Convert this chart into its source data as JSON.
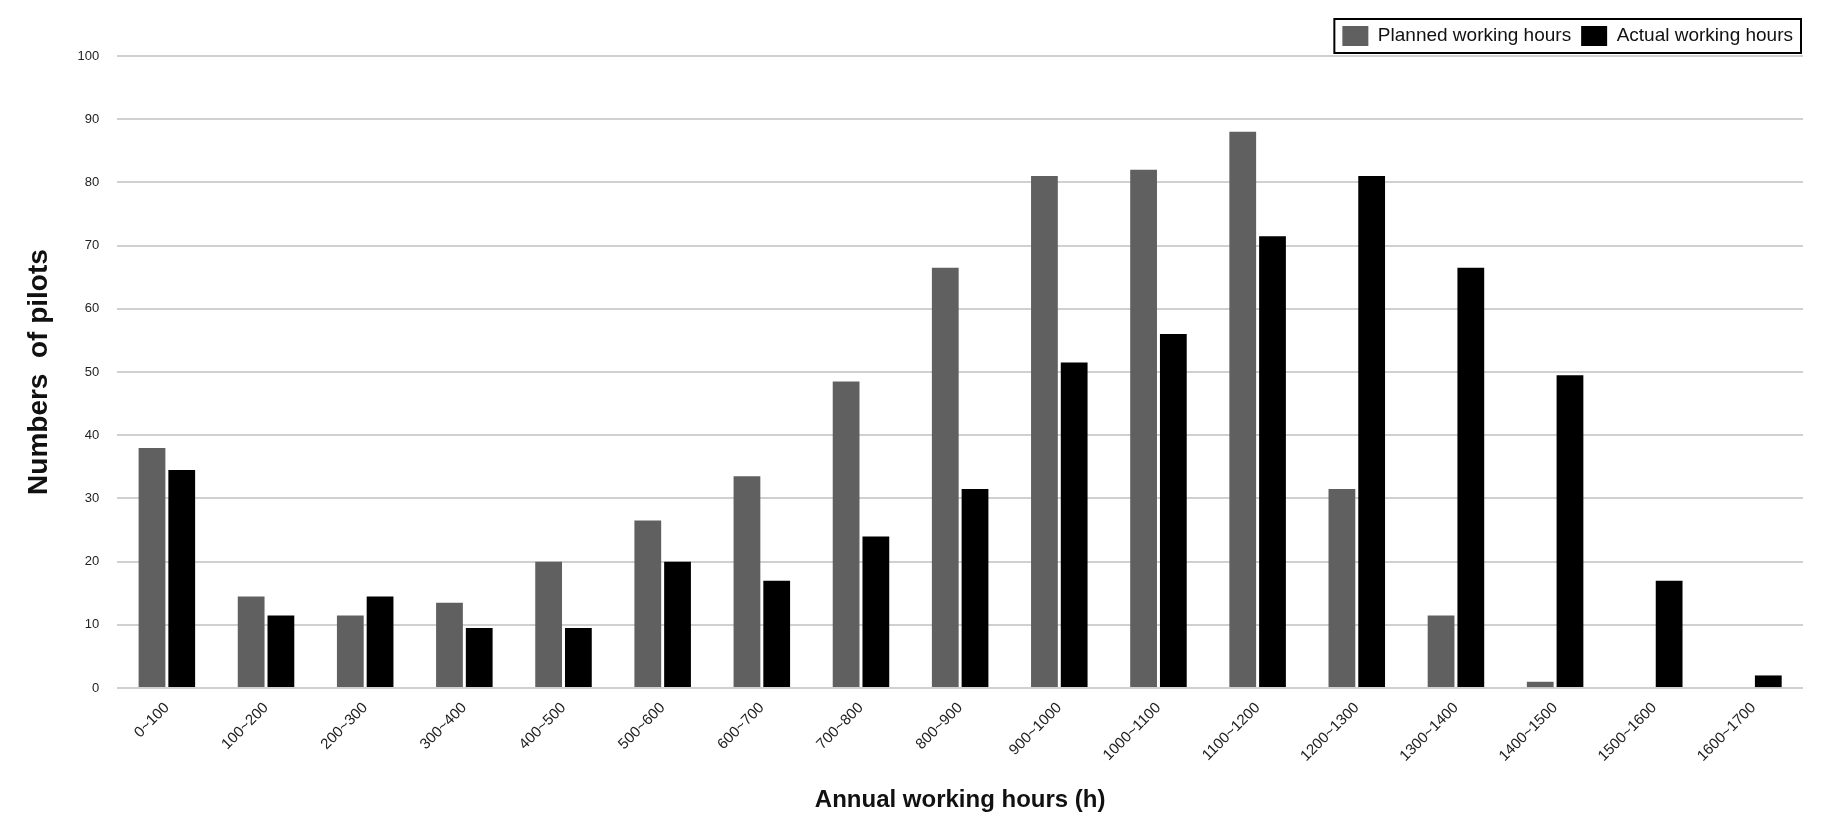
{
  "chart_data": {
    "type": "bar",
    "xlabel": "Annual working hours (h)",
    "ylabel": "Numbers  of pilots",
    "categories": [
      "0~100",
      "100~200",
      "200~300",
      "300~400",
      "400~500",
      "500~600",
      "600~700",
      "700~800",
      "800~900",
      "900~1000",
      "1000~1100",
      "1100~1200",
      "1200~1300",
      "1300~1400",
      "1400~1500",
      "1500~1600",
      "1600~1700"
    ],
    "series": [
      {
        "name": "Planned working hours",
        "color": "#606060",
        "values": [
          38,
          14.5,
          11.5,
          13.5,
          20,
          26.5,
          33.5,
          48.5,
          66.5,
          81,
          82,
          88,
          31.5,
          11.5,
          1,
          0,
          0
        ]
      },
      {
        "name": "Actual working hours",
        "color": "#000000",
        "values": [
          34.5,
          11.5,
          14.5,
          9.5,
          9.5,
          20,
          17,
          24,
          31.5,
          51.5,
          56,
          71.5,
          81,
          66.5,
          49.5,
          17,
          2
        ]
      }
    ],
    "ylim": [
      0,
      100
    ],
    "yticks": [
      0,
      10,
      20,
      30,
      40,
      50,
      60,
      70,
      80,
      90,
      100
    ],
    "grid": "y",
    "legend": "top right"
  }
}
